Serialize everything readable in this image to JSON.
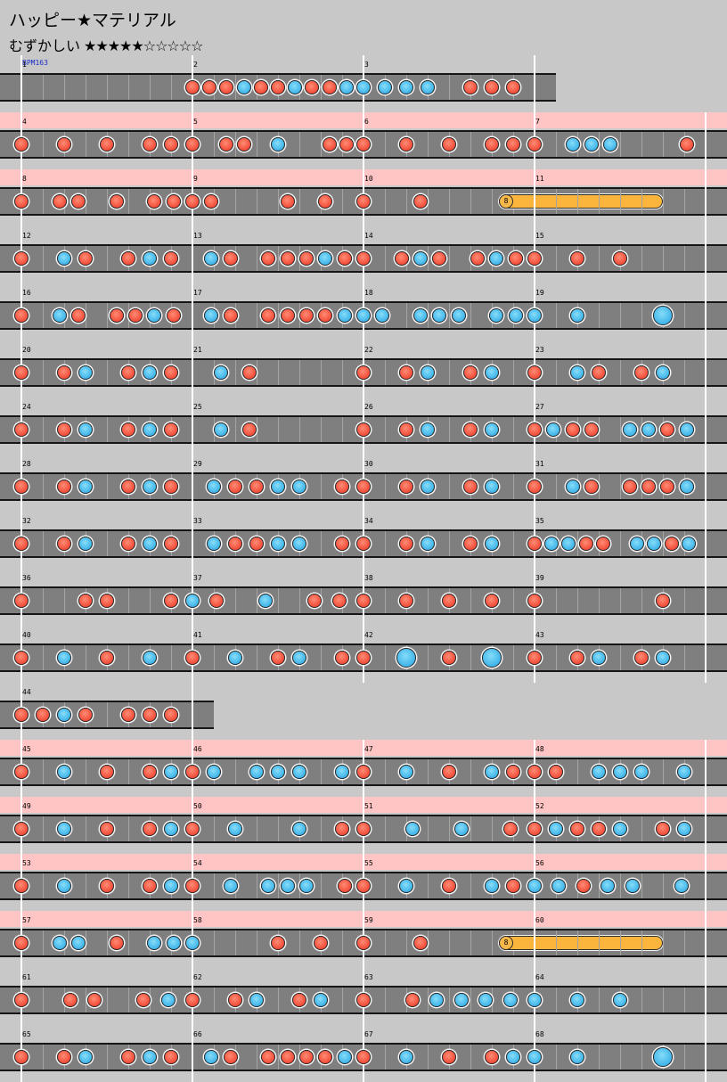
{
  "song": {
    "title": "ハッピー★マテリアル",
    "difficulty_label": "むずかしい",
    "difficulty_stars": "★★★★★☆☆☆☆☆",
    "difficulty_level": 5,
    "bpm_label": "BPM163"
  },
  "legend": {
    "don": "red",
    "ka": "blue"
  },
  "colors": {
    "don": "#f24c38",
    "ka": "#3fb4ea",
    "drumroll": "#fbb53c",
    "gogo_band": "#ffc5c5",
    "lane": "#7f7f7f",
    "background": "#c8c8c8"
  },
  "roll_label": "8",
  "chart_rows": [
    {
      "gogo": false,
      "measures": [
        {
          "n": "1",
          "notes": ""
        },
        {
          "n": "2",
          "notes": "dddkddkddk"
        },
        {
          "n": "3",
          "notes": "kkkk.ddd"
        }
      ]
    },
    {
      "gogo": true,
      "measures": [
        {
          "n": "4",
          "notes": "d.d.d.dd"
        },
        {
          "n": "5",
          "notes": "d.dd.k..dd"
        },
        {
          "n": "6",
          "notes": "d.d.d.dd"
        },
        {
          "n": "7",
          "notes": "d.kkk...d"
        }
      ]
    },
    {
      "gogo": true,
      "measures": [
        {
          "n": "8",
          "notes": "d.dd.d.dd"
        },
        {
          "n": "9",
          "notes": "dd...d.d."
        },
        {
          "n": "10",
          "notes": "d.d..R"
        },
        {
          "n": "11",
          "notes": "rrr."
        }
      ]
    },
    {
      "gogo": false,
      "measures": [
        {
          "n": "12",
          "notes": "d.kd.dkd"
        },
        {
          "n": "13",
          "notes": ".kd.dddkd"
        },
        {
          "n": "14",
          "notes": "d.dkd.dkd"
        },
        {
          "n": "15",
          "notes": "d.d.d..."
        }
      ]
    },
    {
      "gogo": false,
      "measures": [
        {
          "n": "16",
          "notes": "d.kd.ddkd"
        },
        {
          "n": "17",
          "notes": ".kd.ddddk"
        },
        {
          "n": "18",
          "notes": "kk.kkk.kk"
        },
        {
          "n": "19",
          "notes": "kk.K"
        }
      ]
    },
    {
      "gogo": false,
      "measures": [
        {
          "n": "20",
          "notes": "d.dk.dkd"
        },
        {
          "n": "21",
          "notes": ".kd..."
        },
        {
          "n": "22",
          "notes": "d.dk.dk."
        },
        {
          "n": "23",
          "notes": "d.kd.dk."
        }
      ]
    },
    {
      "gogo": false,
      "measures": [
        {
          "n": "24",
          "notes": "d.dk.dkd"
        },
        {
          "n": "25",
          "notes": ".kd..."
        },
        {
          "n": "26",
          "notes": "d.dk.dk."
        },
        {
          "n": "27",
          "notes": "dkdd.kkdk"
        }
      ]
    },
    {
      "gogo": false,
      "measures": [
        {
          "n": "28",
          "notes": "d.dk.dkd"
        },
        {
          "n": "29",
          "notes": ".kddkk.d"
        },
        {
          "n": "30",
          "notes": "d.dk.dk."
        },
        {
          "n": "31",
          "notes": "d.kd.dddk"
        }
      ]
    },
    {
      "gogo": false,
      "measures": [
        {
          "n": "32",
          "notes": "d.dk.dkd"
        },
        {
          "n": "33",
          "notes": ".kddkk.d"
        },
        {
          "n": "34",
          "notes": "d.dk.dk."
        },
        {
          "n": "35",
          "notes": "dkkdd.kkdk"
        }
      ]
    },
    {
      "gogo": false,
      "measures": [
        {
          "n": "36",
          "notes": "d..dd..d"
        },
        {
          "n": "37",
          "notes": "kd.k.dd"
        },
        {
          "n": "38",
          "notes": "d.d.d.d."
        },
        {
          "n": "39",
          "notes": "d..d"
        }
      ]
    },
    {
      "gogo": false,
      "measures": [
        {
          "n": "40",
          "notes": "d.k.d.k."
        },
        {
          "n": "41",
          "notes": "d.k.dk.d"
        },
        {
          "n": "42",
          "notes": "d.K.d.K."
        },
        {
          "n": "43",
          "notes": "d.dk.dk."
        }
      ]
    },
    {
      "gogo": false,
      "measures": [
        {
          "n": "44",
          "notes": "ddkd.ddd"
        }
      ]
    },
    {
      "gogo": true,
      "measures": [
        {
          "n": "45",
          "notes": "d.k.d.dk"
        },
        {
          "n": "46",
          "notes": "dk.kkk.k"
        },
        {
          "n": "47",
          "notes": "d.k.d.kd"
        },
        {
          "n": "48",
          "notes": "dd.kkk.k"
        }
      ]
    },
    {
      "gogo": true,
      "measures": [
        {
          "n": "49",
          "notes": "d.k.d.dk"
        },
        {
          "n": "50",
          "notes": "d.k..k.d"
        },
        {
          "n": "51",
          "notes": "d.k.k.d"
        },
        {
          "n": "52",
          "notes": "dkddk.dk"
        }
      ]
    },
    {
      "gogo": true,
      "measures": [
        {
          "n": "53",
          "notes": "d.k.d.dk"
        },
        {
          "n": "54",
          "notes": "d.k.kkk.d"
        },
        {
          "n": "55",
          "notes": "d.k.d.kd"
        },
        {
          "n": "56",
          "notes": "kkdkk.k"
        }
      ]
    },
    {
      "gogo": true,
      "measures": [
        {
          "n": "57",
          "notes": "d.kk.d.kk"
        },
        {
          "n": "58",
          "notes": "k...d.d."
        },
        {
          "n": "59",
          "notes": "d.d..R"
        },
        {
          "n": "60",
          "notes": "rrr."
        }
      ]
    },
    {
      "gogo": false,
      "measures": [
        {
          "n": "61",
          "notes": "d.dd.dk"
        },
        {
          "n": "62",
          "notes": "d.dk.dk."
        },
        {
          "n": "63",
          "notes": "d.dkkkk"
        },
        {
          "n": "64",
          "notes": "k.k.k..."
        }
      ]
    },
    {
      "gogo": false,
      "measures": [
        {
          "n": "65",
          "notes": "d.dk.dkd"
        },
        {
          "n": "66",
          "notes": ".kd.ddddk"
        },
        {
          "n": "67",
          "notes": "d.k.d.dk"
        },
        {
          "n": "68",
          "notes": "kk.K"
        }
      ]
    }
  ]
}
